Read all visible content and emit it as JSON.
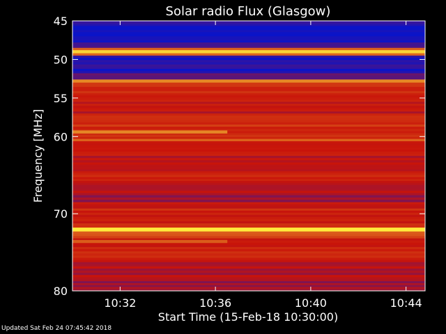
{
  "chart_data": {
    "type": "heatmap",
    "title": "Solar radio Flux (Glasgow)",
    "xlabel": "Start Time (15-Feb-18 10:30:00)",
    "ylabel": "Frequency [MHz]",
    "x_range": [
      "10:30:00",
      "10:44:48"
    ],
    "y_range": [
      45,
      80
    ],
    "y_axis_inverted": true,
    "x_ticks": [
      "10:32",
      "10:36",
      "10:40",
      "10:44"
    ],
    "y_ticks": [
      45,
      50,
      55,
      60,
      70,
      80
    ],
    "colormap": "blue-red-yellow",
    "colors": {
      "background": "#000000",
      "low": "#0a14c8",
      "mid": "#c8140a",
      "high": "#ffeb3c",
      "text": "#ffffff"
    },
    "bands": [
      {
        "f0": 45.0,
        "f1": 45.4,
        "level": 0.15
      },
      {
        "f0": 45.4,
        "f1": 47.8,
        "level": 0.0
      },
      {
        "f0": 47.8,
        "f1": 48.5,
        "level": 0.1
      },
      {
        "f0": 48.5,
        "f1": 48.8,
        "level": 0.65
      },
      {
        "f0": 48.8,
        "f1": 49.2,
        "level": 0.95
      },
      {
        "f0": 49.2,
        "f1": 49.5,
        "level": 0.6
      },
      {
        "f0": 49.5,
        "f1": 51.8,
        "level": 0.05
      },
      {
        "f0": 51.8,
        "f1": 52.6,
        "level": 0.15
      },
      {
        "f0": 52.6,
        "f1": 53.0,
        "level": 0.72
      },
      {
        "f0": 53.0,
        "f1": 55.5,
        "level": 0.45
      },
      {
        "f0": 55.5,
        "f1": 57.0,
        "level": 0.38
      },
      {
        "f0": 57.0,
        "f1": 59.3,
        "level": 0.47
      },
      {
        "f0": 59.3,
        "f1": 60.3,
        "level": 0.44
      },
      {
        "f0": 60.3,
        "f1": 60.6,
        "level": 0.66
      },
      {
        "f0": 60.6,
        "f1": 62.5,
        "level": 0.42
      },
      {
        "f0": 62.5,
        "f1": 64.5,
        "level": 0.36
      },
      {
        "f0": 64.5,
        "f1": 66.0,
        "level": 0.42
      },
      {
        "f0": 66.0,
        "f1": 67.3,
        "level": 0.36
      },
      {
        "f0": 67.3,
        "f1": 68.5,
        "level": 0.3
      },
      {
        "f0": 68.5,
        "f1": 71.8,
        "level": 0.43
      },
      {
        "f0": 71.8,
        "f1": 72.3,
        "level": 0.97
      },
      {
        "f0": 72.3,
        "f1": 73.2,
        "level": 0.55
      },
      {
        "f0": 73.2,
        "f1": 76.0,
        "level": 0.45
      },
      {
        "f0": 76.0,
        "f1": 78.5,
        "level": 0.35
      },
      {
        "f0": 78.5,
        "f1": 80.0,
        "level": 0.3
      }
    ],
    "bright_streaks": [
      {
        "f0": 59.2,
        "f1": 59.6,
        "t_end": "10:36:30",
        "level": 0.72
      },
      {
        "f0": 73.4,
        "f1": 73.8,
        "t_end": "10:36:30",
        "level": 0.6
      }
    ]
  },
  "footer": {
    "text": "Updated Sat Feb 24 07:45:42 2018"
  }
}
